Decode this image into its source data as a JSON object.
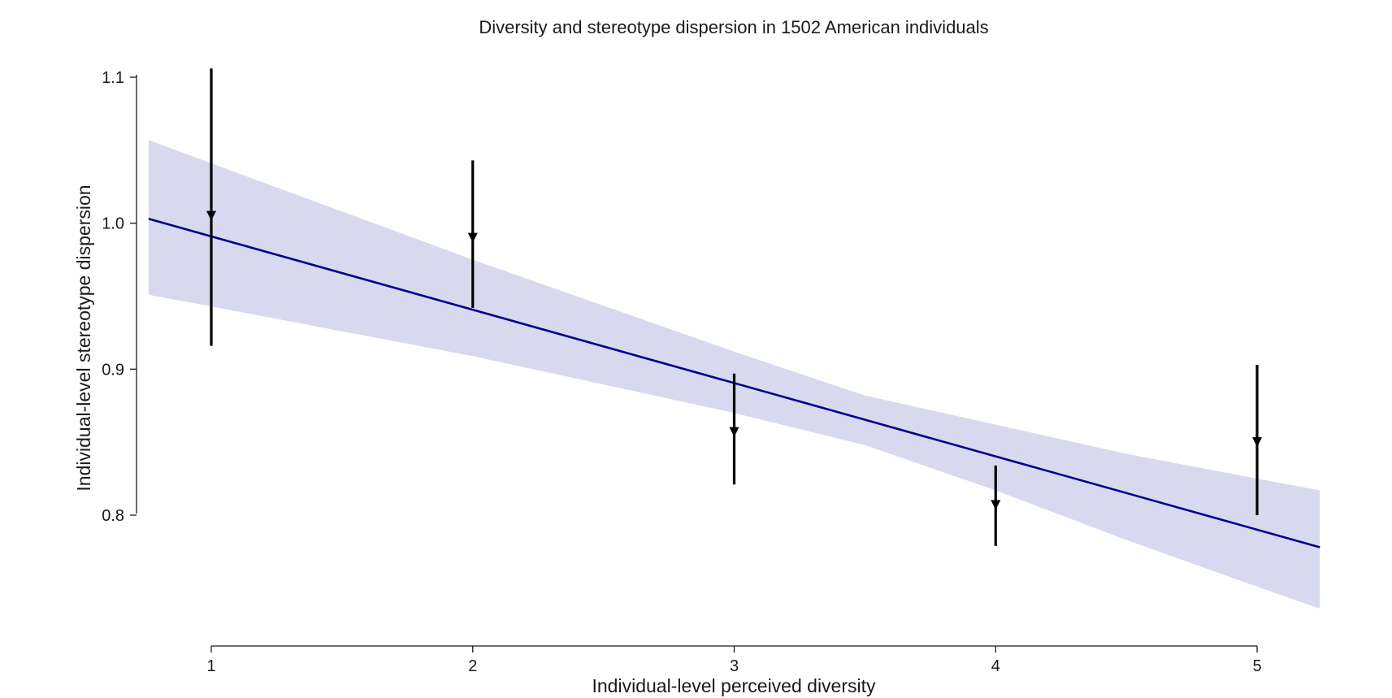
{
  "chart_data": {
    "type": "line",
    "title": "Diversity and stereotype dispersion in 1502 American individuals",
    "xlabel": "Individual-level perceived diversity",
    "ylabel": "Individual-level stereotype dispersion",
    "xlim": [
      0.76,
      5.24
    ],
    "ylim": [
      0.712,
      1.11
    ],
    "x_ticks": [
      1,
      2,
      3,
      4,
      5
    ],
    "x_tick_labels": [
      "1",
      "2",
      "3",
      "4",
      "5"
    ],
    "y_ticks": [
      0.8,
      0.9,
      1.0,
      1.1
    ],
    "y_tick_labels": [
      "0.8",
      "0.9",
      "1.0",
      "1.1"
    ],
    "grid": false,
    "series": [
      {
        "kind": "point_estimates_with_error_bars",
        "color": "#000000",
        "points": [
          {
            "x": 1,
            "y": 1.005,
            "ylow": 0.916,
            "yhigh": 1.106
          },
          {
            "x": 2,
            "y": 0.99,
            "ylow": 0.942,
            "yhigh": 1.043
          },
          {
            "x": 3,
            "y": 0.857,
            "ylow": 0.821,
            "yhigh": 0.897
          },
          {
            "x": 4,
            "y": 0.807,
            "ylow": 0.779,
            "yhigh": 0.834
          },
          {
            "x": 5,
            "y": 0.85,
            "ylow": 0.8,
            "yhigh": 0.903
          }
        ]
      },
      {
        "kind": "regression_line",
        "color": "#00008b",
        "x": [
          0.76,
          5.24
        ],
        "y": [
          1.003,
          0.778
        ]
      },
      {
        "kind": "confidence_band",
        "color": "#d8d9ee",
        "x": [
          0.76,
          1.0,
          2.0,
          3.0,
          3.5,
          4.0,
          4.5,
          5.0,
          5.24
        ],
        "lower": [
          0.951,
          0.943,
          0.909,
          0.87,
          0.848,
          0.817,
          0.783,
          0.751,
          0.736
        ],
        "upper": [
          1.057,
          1.041,
          0.975,
          0.912,
          0.882,
          0.862,
          0.842,
          0.825,
          0.817
        ]
      }
    ]
  }
}
